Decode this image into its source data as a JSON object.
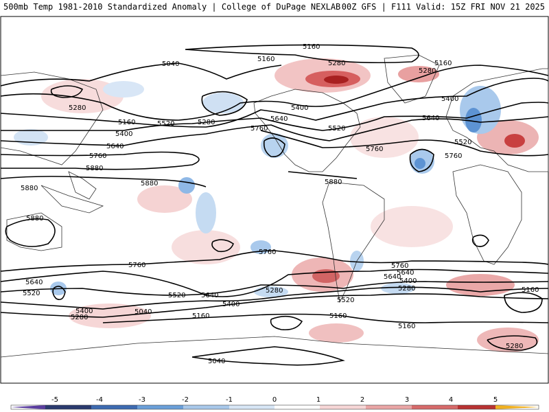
{
  "header": {
    "title_left": "500mb Temp 1981-2010 Standardized Anomaly | College of DuPage NEXLAB",
    "title_right": "00Z GFS | F111 Valid: 15Z FRI NOV 21 2025"
  },
  "contour_labels": [
    {
      "id": "lbl-5160-a",
      "text": "5160"
    },
    {
      "id": "lbl-5160-b",
      "text": "5160"
    },
    {
      "id": "lbl-5160-c",
      "text": "5160"
    },
    {
      "id": "lbl-5040-a",
      "text": "5040"
    },
    {
      "id": "lbl-5280-a",
      "text": "5280"
    },
    {
      "id": "lbl-5280-b",
      "text": "5280"
    },
    {
      "id": "lbl-5280-c",
      "text": "5280"
    },
    {
      "id": "lbl-5280-d",
      "text": "5280"
    },
    {
      "id": "lbl-5160-d",
      "text": "5160"
    },
    {
      "id": "lbl-5400-a",
      "text": "5400"
    },
    {
      "id": "lbl-5400-b",
      "text": "5400"
    },
    {
      "id": "lbl-5400-c",
      "text": "5400"
    },
    {
      "id": "lbl-5520-a",
      "text": "5520"
    },
    {
      "id": "lbl-5520-b",
      "text": "5520"
    },
    {
      "id": "lbl-5520-c",
      "text": "5520"
    },
    {
      "id": "lbl-5640-a",
      "text": "5640"
    },
    {
      "id": "lbl-5640-b",
      "text": "5640"
    },
    {
      "id": "lbl-5640-c",
      "text": "5640"
    },
    {
      "id": "lbl-5760-a",
      "text": "5760"
    },
    {
      "id": "lbl-5760-b",
      "text": "5760"
    },
    {
      "id": "lbl-5760-c",
      "text": "5760"
    },
    {
      "id": "lbl-5760-d",
      "text": "5760"
    },
    {
      "id": "lbl-5880-a",
      "text": "5880"
    },
    {
      "id": "lbl-5880-b",
      "text": "5880"
    },
    {
      "id": "lbl-5880-c",
      "text": "5880"
    },
    {
      "id": "lbl-5880-d",
      "text": "5880"
    },
    {
      "id": "lbl-5880-e",
      "text": "5880"
    },
    {
      "id": "lbl-5760-e",
      "text": "5760"
    },
    {
      "id": "lbl-5760-f",
      "text": "5760"
    },
    {
      "id": "lbl-5760-g",
      "text": "5760"
    },
    {
      "id": "lbl-5640-d",
      "text": "5640"
    },
    {
      "id": "lbl-5640-e",
      "text": "5640"
    },
    {
      "id": "lbl-5640-f",
      "text": "5640"
    },
    {
      "id": "lbl-5520-d",
      "text": "5520"
    },
    {
      "id": "lbl-5520-e",
      "text": "5520"
    },
    {
      "id": "lbl-5400-d",
      "text": "5400"
    },
    {
      "id": "lbl-5400-e",
      "text": "5400"
    },
    {
      "id": "lbl-5400-f",
      "text": "5400"
    },
    {
      "id": "lbl-5280-e",
      "text": "5280"
    },
    {
      "id": "lbl-5280-f",
      "text": "5280"
    },
    {
      "id": "lbl-5280-g",
      "text": "5280"
    },
    {
      "id": "lbl-5160-e",
      "text": "5160"
    },
    {
      "id": "lbl-5160-f",
      "text": "5160"
    },
    {
      "id": "lbl-5160-g",
      "text": "5160"
    },
    {
      "id": "lbl-5160-h",
      "text": "5160"
    },
    {
      "id": "lbl-5040-b",
      "text": "5040"
    },
    {
      "id": "lbl-5040-c",
      "text": "5040"
    },
    {
      "id": "lbl-5280-h",
      "text": "5280"
    },
    {
      "id": "lbl-5520-f",
      "text": "5520"
    },
    {
      "id": "lbl-5640-g",
      "text": "5640"
    }
  ],
  "colorbar": {
    "ticks": [
      "-5",
      "-4",
      "-3",
      "-2",
      "-1",
      "0",
      "1",
      "2",
      "3",
      "4",
      "5"
    ],
    "colors": [
      "#2a3a6e",
      "#3d6ab0",
      "#6a9fd8",
      "#a8c8ea",
      "#d7e6f5",
      "#ffffff",
      "#f6d6d6",
      "#e9a5a5",
      "#d66a6a",
      "#b83232",
      "#8c1a1a"
    ],
    "low_end_color": "#5b3ea0",
    "high_end_color": "#f0b020"
  },
  "colors": {
    "land_outline": "#333333",
    "contour": "#000000",
    "anom_warm_light": "#f7d9d9",
    "anom_warm_mid": "#eaa8a8",
    "anom_warm_strong": "#c44040",
    "anom_cold_light": "#d8e6f6",
    "anom_cold_mid": "#a9c9ec",
    "anom_cold_strong": "#5d93d3"
  }
}
